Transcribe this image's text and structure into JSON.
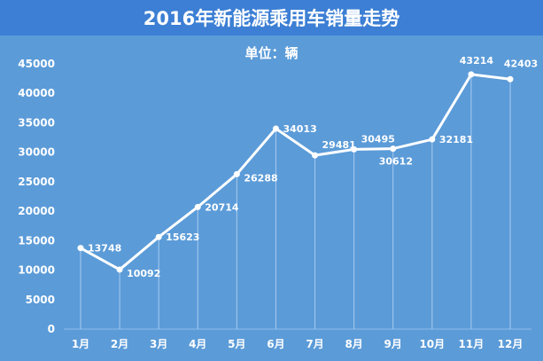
{
  "chart_data": {
    "type": "line",
    "title": "2016年新能源乘用车销量走势",
    "subtitle": "单位：辆",
    "xlabel": "",
    "ylabel": "",
    "categories": [
      "1月",
      "2月",
      "3月",
      "4月",
      "5月",
      "6月",
      "7月",
      "8月",
      "9月",
      "10月",
      "11月",
      "12月"
    ],
    "series": [
      {
        "values": [
          13748,
          10092,
          15623,
          20714,
          26288,
          34013,
          29481,
          30495,
          30612,
          32181,
          43214,
          42403
        ]
      }
    ],
    "data_labels": [
      "13748",
      "10092",
      "15623",
      "20714",
      "26288",
      "34013",
      "29481",
      "30495",
      "30612",
      "32181",
      "43214",
      "42403"
    ],
    "ylim": [
      0,
      45000
    ],
    "yticks": [
      0,
      5000,
      10000,
      15000,
      20000,
      25000,
      30000,
      35000,
      40000,
      45000
    ],
    "ytick_labels": [
      "0",
      "5000",
      "10000",
      "15000",
      "20000",
      "25000",
      "30000",
      "35000",
      "40000",
      "45000"
    ],
    "grid": false,
    "drop_lines": true,
    "colors": {
      "title_bar": "#3c7fd4",
      "plot_bg": "#5b9bd8",
      "line": "#ffffff",
      "text": "#ffffff",
      "drop_line": "#a9cbee"
    }
  }
}
